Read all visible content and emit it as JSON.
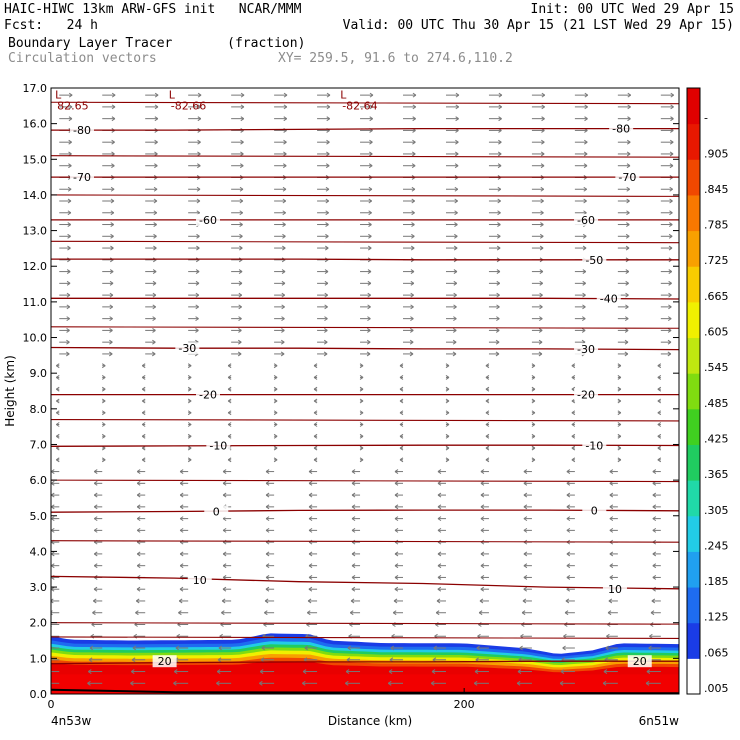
{
  "header": {
    "model_line": "HAIC-HIWC 13km ARW-GFS init   NCAR/MMM",
    "init_line": "Init: 00 UTC Wed 29 Apr 15",
    "fcst_line": "Fcst:   24 h",
    "valid_line": "Valid: 00 UTC Thu 30 Apr 15 (21 LST Wed 29 Apr 15)",
    "field_line": "Boundary Layer Tracer       (fraction)",
    "vector_line": "Circulation vectors",
    "xy_line": "XY= 259.5, 91.6 to 274.6,110.2"
  },
  "chart_data": {
    "type": "heatmap",
    "title": "Boundary Layer Tracer",
    "units": "(fraction)",
    "xlabel": "Distance (km)",
    "ylabel": "Height (km)",
    "xlim": [
      0,
      304
    ],
    "ylim": [
      0,
      17
    ],
    "x_ticks": [
      0,
      200
    ],
    "x_tick_labels": [
      "0",
      "200"
    ],
    "x_end_labels": [
      "4n53w",
      "6n51w"
    ],
    "y_ticks": [
      0,
      1,
      2,
      3,
      4,
      5,
      6,
      7,
      8,
      9,
      10,
      11,
      12,
      13,
      14,
      15,
      16,
      17
    ],
    "y_tick_labels": [
      "0.0",
      "1.0",
      "2.0",
      "3.0",
      "4.0",
      "5.0",
      "6.0",
      "7.0",
      "8.0",
      "9.0",
      "10.0",
      "11.0",
      "12.0",
      "13.0",
      "14.0",
      "15.0",
      "16.0",
      "17.0"
    ],
    "colorbar_labels": [
      ".005",
      ".065",
      ".125",
      ".185",
      ".245",
      ".305",
      ".365",
      ".425",
      ".485",
      ".545",
      ".605",
      ".665",
      ".725",
      ".785",
      ".845",
      ".905",
      "-"
    ],
    "colorbar_colors": [
      "#ffffff",
      "#1a3ce6",
      "#1e6cf0",
      "#20a0f0",
      "#22cce6",
      "#20d9a8",
      "#20cc60",
      "#40d020",
      "#80dc10",
      "#c0e810",
      "#f0f000",
      "#f8cc00",
      "#f8a000",
      "#f87800",
      "#f04800",
      "#e81800",
      "#e00000"
    ],
    "contour_color": "#8b0000",
    "pbl_top_km": [
      [
        0,
        1.62
      ],
      [
        10,
        1.52
      ],
      [
        40,
        1.5
      ],
      [
        90,
        1.52
      ],
      [
        105,
        1.7
      ],
      [
        125,
        1.68
      ],
      [
        135,
        1.5
      ],
      [
        160,
        1.43
      ],
      [
        200,
        1.42
      ],
      [
        230,
        1.28
      ],
      [
        245,
        1.12
      ],
      [
        262,
        1.22
      ],
      [
        275,
        1.42
      ],
      [
        304,
        1.4
      ]
    ],
    "temperature_contours": [
      {
        "label": "20",
        "y": [
          0.85,
          0.88,
          0.9,
          0.9,
          0.92,
          0.92
        ]
      },
      {
        "label": "10",
        "y": [
          3.3,
          3.25,
          3.15,
          3.1,
          3.0,
          2.95
        ]
      },
      {
        "label": "0",
        "y": [
          5.1,
          5.12,
          5.15,
          5.16,
          5.16,
          5.14
        ]
      },
      {
        "label": "-10",
        "y": [
          6.95,
          6.96,
          6.97,
          6.98,
          6.98,
          6.97
        ]
      },
      {
        "label": "-20",
        "y": [
          8.4,
          8.4,
          8.4,
          8.4,
          8.4,
          8.4
        ]
      },
      {
        "label": "-30",
        "y": [
          9.72,
          9.7,
          9.7,
          9.68,
          9.68,
          9.66
        ]
      },
      {
        "label": "-40",
        "y": [
          11.1,
          11.1,
          11.1,
          11.1,
          11.1,
          11.08
        ]
      },
      {
        "label": "-50",
        "y": [
          12.2,
          12.2,
          12.2,
          12.18,
          12.18,
          12.18
        ]
      },
      {
        "label": "-60",
        "y": [
          13.3,
          13.3,
          13.3,
          13.3,
          13.3,
          13.3
        ]
      },
      {
        "label": "-70",
        "y": [
          14.5,
          14.5,
          14.5,
          14.5,
          14.5,
          14.5
        ]
      },
      {
        "label": "-80",
        "y": [
          15.82,
          15.82,
          15.84,
          15.86,
          15.86,
          15.86
        ]
      }
    ],
    "extra_contours_km": [
      10.3,
      12.7,
      14.0,
      15.1,
      16.6,
      7.7,
      6.0,
      4.3,
      2.0,
      1.6
    ],
    "contour_x_km": [
      0,
      60,
      120,
      180,
      240,
      304
    ],
    "contour_labels": [
      {
        "text": "20",
        "x": 55,
        "y": 0.92
      },
      {
        "text": "20",
        "x": 285,
        "y": 0.92
      },
      {
        "text": "10",
        "x": 72,
        "y": 3.2
      },
      {
        "text": "10",
        "x": 273,
        "y": 2.95
      },
      {
        "text": "0",
        "x": 80,
        "y": 5.12
      },
      {
        "text": "0",
        "x": 263,
        "y": 5.15
      },
      {
        "text": "-10",
        "x": 81,
        "y": 6.97
      },
      {
        "text": "-10",
        "x": 263,
        "y": 6.97
      },
      {
        "text": "-20",
        "x": 76,
        "y": 8.4
      },
      {
        "text": "-20",
        "x": 259,
        "y": 8.4
      },
      {
        "text": "-30",
        "x": 66,
        "y": 9.7
      },
      {
        "text": "-30",
        "x": 259,
        "y": 9.68
      },
      {
        "text": "-40",
        "x": 270,
        "y": 11.1
      },
      {
        "text": "-50",
        "x": 263,
        "y": 12.18
      },
      {
        "text": "-60",
        "x": 76,
        "y": 13.3
      },
      {
        "text": "-60",
        "x": 259,
        "y": 13.3
      },
      {
        "text": "-70",
        "x": 15,
        "y": 14.5
      },
      {
        "text": "-70",
        "x": 279,
        "y": 14.5
      },
      {
        "text": "-80",
        "x": 15,
        "y": 15.82
      },
      {
        "text": "-80",
        "x": 276,
        "y": 15.86
      }
    ],
    "lows": [
      {
        "letter": "L",
        "value": "82.65",
        "x": 2,
        "y": 16.7
      },
      {
        "letter": "L",
        "value": "-82.66",
        "x": 57,
        "y": 16.7
      },
      {
        "letter": "L",
        "value": "-82.64",
        "x": 140,
        "y": 16.7
      }
    ]
  }
}
